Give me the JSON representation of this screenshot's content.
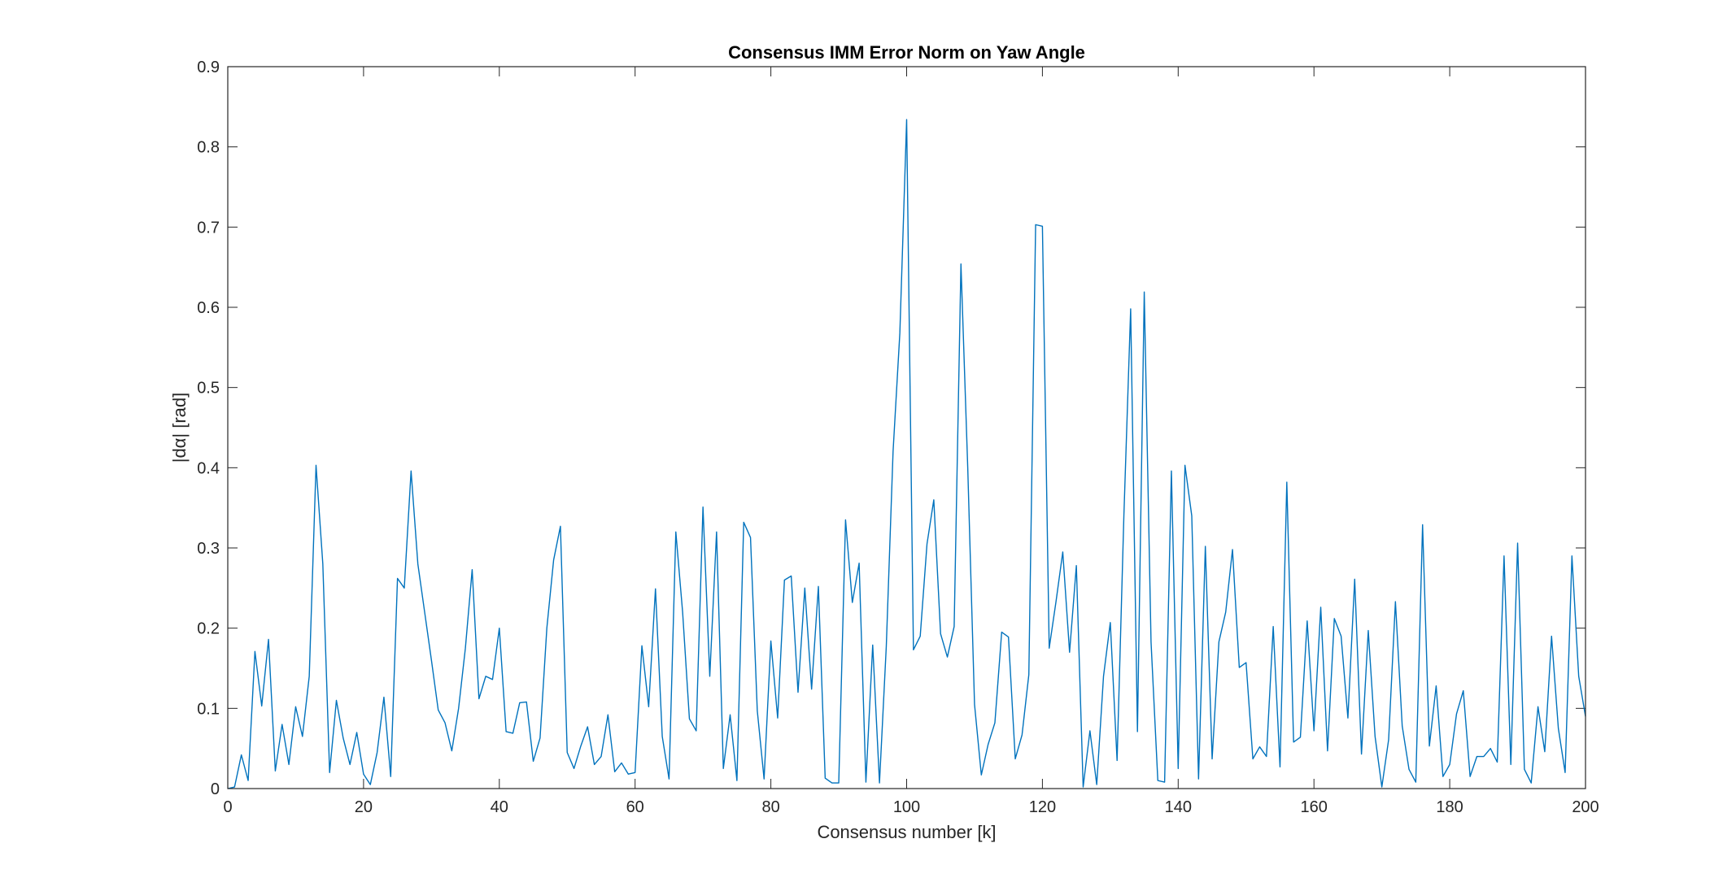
{
  "chart_data": {
    "type": "line",
    "title": "Consensus IMM Error Norm on Yaw Angle",
    "xlabel": "Consensus number [k]",
    "ylabel": "|dα| [rad]",
    "xlim": [
      0,
      200
    ],
    "ylim": [
      0,
      0.9
    ],
    "xticks": [
      0,
      20,
      40,
      60,
      80,
      100,
      120,
      140,
      160,
      180,
      200
    ],
    "yticks": [
      0,
      0.1,
      0.2,
      0.3,
      0.4,
      0.5,
      0.6,
      0.7,
      0.8,
      0.9
    ],
    "xtick_labels": [
      "0",
      "20",
      "40",
      "60",
      "80",
      "100",
      "120",
      "140",
      "160",
      "180",
      "200"
    ],
    "ytick_labels": [
      "0",
      "0.1",
      "0.2",
      "0.3",
      "0.4",
      "0.5",
      "0.6",
      "0.7",
      "0.8",
      "0.9"
    ],
    "grid": false,
    "line_color": "#0072BD",
    "series": [
      {
        "values": [
          0.0,
          0.002,
          0.042,
          0.01,
          0.171,
          0.103,
          0.186,
          0.022,
          0.08,
          0.03,
          0.102,
          0.065,
          0.14,
          0.403,
          0.28,
          0.02,
          0.11,
          0.063,
          0.03,
          0.07,
          0.018,
          0.005,
          0.045,
          0.114,
          0.015,
          0.262,
          0.25,
          0.396,
          0.28,
          0.22,
          0.16,
          0.098,
          0.082,
          0.047,
          0.1,
          0.175,
          0.273,
          0.112,
          0.14,
          0.136,
          0.2,
          0.071,
          0.069,
          0.107,
          0.108,
          0.034,
          0.063,
          0.2,
          0.285,
          0.327,
          0.045,
          0.025,
          0.053,
          0.077,
          0.03,
          0.04,
          0.092,
          0.021,
          0.032,
          0.018,
          0.02,
          0.178,
          0.102,
          0.249,
          0.065,
          0.012,
          0.32,
          0.22,
          0.087,
          0.072,
          0.351,
          0.14,
          0.32,
          0.025,
          0.092,
          0.01,
          0.332,
          0.313,
          0.097,
          0.012,
          0.184,
          0.088,
          0.26,
          0.265,
          0.12,
          0.25,
          0.124,
          0.252,
          0.013,
          0.007,
          0.007,
          0.335,
          0.232,
          0.281,
          0.008,
          0.179,
          0.007,
          0.177,
          0.42,
          0.568,
          0.834,
          0.173,
          0.19,
          0.305,
          0.36,
          0.193,
          0.164,
          0.202,
          0.654,
          0.4,
          0.105,
          0.017,
          0.055,
          0.082,
          0.195,
          0.189,
          0.037,
          0.067,
          0.142,
          0.703,
          0.701,
          0.175,
          0.233,
          0.295,
          0.17,
          0.278,
          0.002,
          0.072,
          0.005,
          0.14,
          0.207,
          0.035,
          0.34,
          0.598,
          0.071,
          0.619,
          0.183,
          0.01,
          0.008,
          0.396,
          0.025,
          0.403,
          0.34,
          0.012,
          0.302,
          0.037,
          0.183,
          0.22,
          0.298,
          0.151,
          0.157,
          0.037,
          0.052,
          0.04,
          0.202,
          0.027,
          0.382,
          0.058,
          0.064,
          0.209,
          0.072,
          0.226,
          0.047,
          0.212,
          0.19,
          0.088,
          0.261,
          0.043,
          0.197,
          0.065,
          0.002,
          0.061,
          0.233,
          0.078,
          0.024,
          0.008,
          0.329,
          0.053,
          0.128,
          0.015,
          0.03,
          0.093,
          0.122,
          0.015,
          0.04,
          0.04,
          0.05,
          0.033,
          0.29,
          0.03,
          0.306,
          0.024,
          0.007,
          0.102,
          0.046,
          0.19,
          0.075,
          0.02,
          0.29,
          0.14,
          0.09
        ]
      }
    ]
  }
}
